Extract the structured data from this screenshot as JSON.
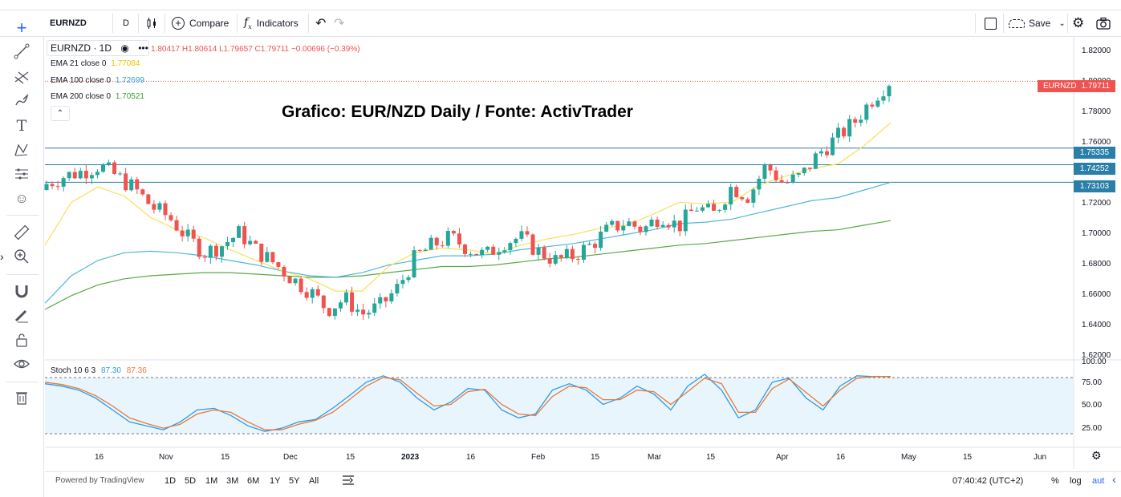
{
  "topbar": {
    "symbol": "EURNZD",
    "interval": "D",
    "compare_label": "Compare",
    "indicators_label": "Indicators",
    "save_label": "Save"
  },
  "legend": {
    "symbol_interval": "EURNZD · 1D",
    "ohlc": "1.80417 H1.80614 L1.79657 C1.79711 −0.00696 (−0.39%)",
    "ema21_label": "EMA 21 close 0",
    "ema21_value": "1.77084",
    "ema100_label": "EMA 100 close 0",
    "ema100_value": "1.72699",
    "ema200_label": "EMA 200 close 0",
    "ema200_value": "1.70521",
    "stoch_label": "Stoch 10 6 3",
    "stoch_k": "87.30",
    "stoch_d": "87.36"
  },
  "overlay_title": "Grafico: EUR/NZD Daily / Fonte: ActivTrader",
  "price_axis": [
    "1.82000",
    "1.80000",
    "1.78000",
    "1.76000",
    "1.74000",
    "1.72000",
    "1.70000",
    "1.68000",
    "1.66000",
    "1.64000",
    "1.62000"
  ],
  "stoch_axis": [
    "100.00",
    "75.00",
    "50.00",
    "25.00"
  ],
  "price_labels": {
    "last_symbol": "EURNZD",
    "last_value": "1.79711",
    "level1": "1.75335",
    "level2": "1.74252",
    "level3": "1.73103"
  },
  "time_axis": [
    "16",
    "Nov",
    "15",
    "Dec",
    "15",
    "2023",
    "16",
    "Feb",
    "15",
    "Mar",
    "15",
    "Apr",
    "16",
    "May",
    "15",
    "Jun"
  ],
  "bottombar": {
    "powered_by": "Powered by TradingView",
    "ranges": [
      "1D",
      "5D",
      "1M",
      "3M",
      "6M",
      "1Y",
      "5Y",
      "All"
    ],
    "clock": "07:40:42 (UTC+2)",
    "percent": "%",
    "log": "log",
    "auto": "aut"
  },
  "colors": {
    "bull": "#26a69a",
    "bear": "#ef5350",
    "ema21": "#f5e15a",
    "ema100": "#4fb7d8",
    "ema200": "#5aa845",
    "level_line": "#2a7fa8",
    "stoch_k": "#2e9be6",
    "stoch_d": "#e8793a"
  },
  "chart_data": {
    "type": "candlestick",
    "ylim": [
      1.615,
      1.826
    ],
    "levels": [
      1.75335,
      1.74252,
      1.73103
    ],
    "ema21": [
      1.69,
      1.718,
      1.728,
      1.722,
      1.708,
      1.7,
      1.695,
      1.687,
      1.68,
      1.673,
      1.668,
      1.66,
      1.66,
      1.676,
      1.685,
      1.688,
      1.687,
      1.684,
      1.69,
      1.694,
      1.697,
      1.701,
      1.703,
      1.71,
      1.718,
      1.717,
      1.718,
      1.729,
      1.735,
      1.74,
      1.743,
      1.755,
      1.77
    ],
    "ema100": [
      1.652,
      1.67,
      1.68,
      1.685,
      1.686,
      1.685,
      1.683,
      1.68,
      1.677,
      1.673,
      1.67,
      1.669,
      1.672,
      1.677,
      1.68,
      1.683,
      1.683,
      1.684,
      1.687,
      1.689,
      1.691,
      1.694,
      1.697,
      1.7,
      1.704,
      1.705,
      1.707,
      1.711,
      1.715,
      1.719,
      1.721,
      1.726,
      1.731
    ],
    "ema200": [
      1.648,
      1.657,
      1.664,
      1.668,
      1.67,
      1.671,
      1.672,
      1.672,
      1.671,
      1.67,
      1.669,
      1.669,
      1.67,
      1.672,
      1.674,
      1.676,
      1.676,
      1.677,
      1.679,
      1.681,
      1.682,
      1.684,
      1.686,
      1.688,
      1.69,
      1.691,
      1.693,
      1.695,
      1.697,
      1.699,
      1.7,
      1.703,
      1.706
    ],
    "closes": [
      1.73,
      1.735,
      1.738,
      1.742,
      1.735,
      1.727,
      1.715,
      1.708,
      1.695,
      1.685,
      1.69,
      1.698,
      1.686,
      1.678,
      1.668,
      1.66,
      1.648,
      1.655,
      1.645,
      1.65,
      1.662,
      1.682,
      1.69,
      1.695,
      1.688,
      1.683,
      1.692,
      1.695,
      1.686,
      1.68,
      1.683,
      1.69,
      1.7,
      1.705,
      1.7,
      1.71,
      1.702,
      1.715,
      1.71,
      1.728,
      1.722,
      1.742,
      1.73,
      1.735,
      1.75,
      1.76,
      1.77,
      1.785,
      1.797
    ],
    "stoch_k": [
      78,
      75,
      70,
      60,
      45,
      30,
      25,
      20,
      30,
      45,
      47,
      38,
      25,
      18,
      22,
      30,
      33,
      47,
      63,
      80,
      88,
      80,
      60,
      45,
      55,
      72,
      70,
      45,
      35,
      40,
      70,
      78,
      70,
      52,
      60,
      75,
      65,
      45,
      75,
      90,
      70,
      35,
      45,
      80,
      85,
      60,
      45,
      75,
      88,
      87,
      87
    ],
    "stoch_d": [
      80,
      77,
      72,
      63,
      50,
      35,
      28,
      22,
      27,
      40,
      45,
      42,
      30,
      20,
      20,
      27,
      32,
      42,
      58,
      75,
      86,
      83,
      66,
      50,
      52,
      68,
      71,
      52,
      40,
      38,
      62,
      75,
      73,
      58,
      58,
      70,
      68,
      52,
      68,
      85,
      78,
      42,
      42,
      72,
      84,
      67,
      50,
      70,
      85,
      87,
      87
    ]
  }
}
